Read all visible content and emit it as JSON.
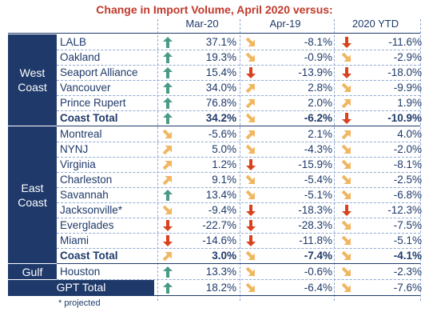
{
  "title": "Change in Import Volume, April 2020 versus:",
  "columns": [
    "Mar-20",
    "Apr-19",
    "2020 YTD"
  ],
  "footnote": "* projected",
  "colors": {
    "navy": "#1f3a6a",
    "title_red": "#c0392b",
    "up_green": "#4a9a86",
    "up_slight": "#f0b763",
    "down_slight": "#f0b763",
    "down_red": "#d9421f"
  },
  "chart_data": {
    "type": "table",
    "title": "Change in Import Volume, April 2020 versus:",
    "columns": [
      "Mar-20",
      "Apr-19",
      "2020 YTD"
    ],
    "groups": [
      {
        "region": "West\nCoast",
        "rows": [
          {
            "port": "LALB",
            "values": [
              "37.1%",
              "-8.1%",
              "-11.6%"
            ],
            "arrows": [
              "up",
              "down-slight",
              "down"
            ]
          },
          {
            "port": "Oakland",
            "values": [
              "19.3%",
              "-0.9%",
              "-2.9%"
            ],
            "arrows": [
              "up",
              "down-slight",
              "down-slight"
            ]
          },
          {
            "port": "Seaport Alliance",
            "values": [
              "15.4%",
              "-13.9%",
              "-18.0%"
            ],
            "arrows": [
              "up",
              "down",
              "down"
            ]
          },
          {
            "port": "Vancouver",
            "values": [
              "34.0%",
              "2.8%",
              "-9.9%"
            ],
            "arrows": [
              "up",
              "up-slight",
              "down-slight"
            ]
          },
          {
            "port": "Prince Rupert",
            "values": [
              "76.8%",
              "2.0%",
              "1.9%"
            ],
            "arrows": [
              "up",
              "up-slight",
              "up-slight"
            ]
          },
          {
            "port": "Coast Total",
            "values": [
              "34.2%",
              "-6.2%",
              "-10.9%"
            ],
            "arrows": [
              "up",
              "down-slight",
              "down"
            ],
            "total": true
          }
        ]
      },
      {
        "region": "East\nCoast",
        "rows": [
          {
            "port": "Montreal",
            "values": [
              "-5.6%",
              "2.1%",
              "4.0%"
            ],
            "arrows": [
              "down-slight",
              "up-slight",
              "up-slight"
            ]
          },
          {
            "port": "NYNJ",
            "values": [
              "5.0%",
              "-4.3%",
              "-2.0%"
            ],
            "arrows": [
              "up-slight",
              "down-slight",
              "down-slight"
            ]
          },
          {
            "port": "Virginia",
            "values": [
              "1.2%",
              "-15.9%",
              "-8.1%"
            ],
            "arrows": [
              "up-slight",
              "down",
              "down-slight"
            ]
          },
          {
            "port": "Charleston",
            "values": [
              "9.1%",
              "-5.4%",
              "-2.5%"
            ],
            "arrows": [
              "up-slight",
              "down-slight",
              "down-slight"
            ]
          },
          {
            "port": "Savannah",
            "values": [
              "13.4%",
              "-5.1%",
              "-6.8%"
            ],
            "arrows": [
              "up",
              "down-slight",
              "down-slight"
            ]
          },
          {
            "port": "Jacksonville*",
            "values": [
              "-9.4%",
              "-18.3%",
              "-12.3%"
            ],
            "arrows": [
              "down-slight",
              "down",
              "down"
            ]
          },
          {
            "port": "Everglades",
            "values": [
              "-22.7%",
              "-28.3%",
              "-7.5%"
            ],
            "arrows": [
              "down",
              "down",
              "down-slight"
            ]
          },
          {
            "port": "Miami",
            "values": [
              "-14.6%",
              "-11.8%",
              "-5.1%"
            ],
            "arrows": [
              "down",
              "down",
              "down-slight"
            ]
          },
          {
            "port": "Coast Total",
            "values": [
              "3.0%",
              "-7.4%",
              "-4.1%"
            ],
            "arrows": [
              "up-slight",
              "down-slight",
              "down-slight"
            ],
            "total": true
          }
        ]
      },
      {
        "region": "Gulf",
        "rows": [
          {
            "port": "Houston",
            "values": [
              "13.3%",
              "-0.6%",
              "-2.3%"
            ],
            "arrows": [
              "up",
              "down-slight",
              "down-slight"
            ]
          }
        ]
      }
    ],
    "grand_total": {
      "label": "GPT Total",
      "values": [
        "18.2%",
        "-6.4%",
        "-7.6%"
      ],
      "arrows": [
        "up",
        "down-slight",
        "down-slight"
      ]
    }
  }
}
